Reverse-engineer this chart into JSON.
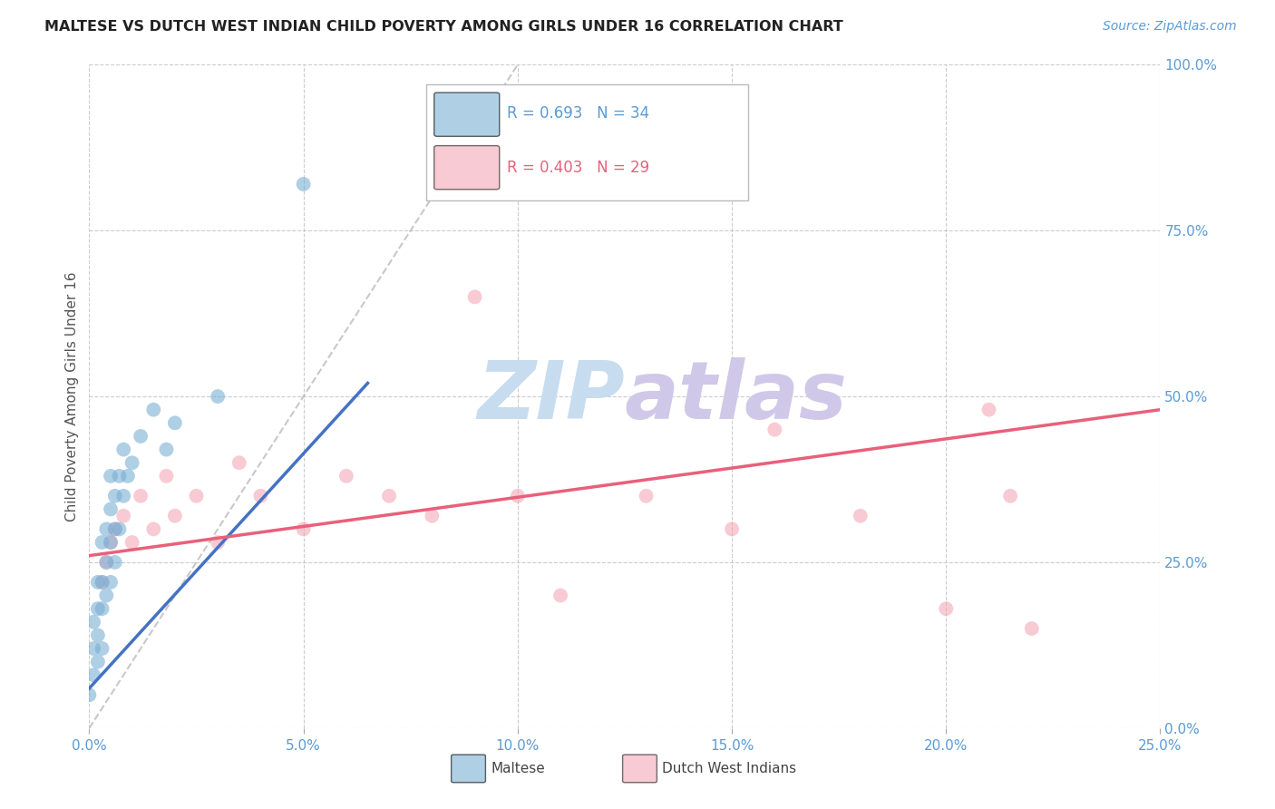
{
  "title": "MALTESE VS DUTCH WEST INDIAN CHILD POVERTY AMONG GIRLS UNDER 16 CORRELATION CHART",
  "source": "Source: ZipAtlas.com",
  "ylabel": "Child Poverty Among Girls Under 16",
  "maltese_R": 0.693,
  "maltese_N": 34,
  "dwi_R": 0.403,
  "dwi_N": 29,
  "xlim": [
    0.0,
    0.25
  ],
  "ylim": [
    0.0,
    1.0
  ],
  "xticks": [
    0.0,
    0.05,
    0.1,
    0.15,
    0.2,
    0.25
  ],
  "xtick_labels": [
    "0.0%",
    "5.0%",
    "10.0%",
    "15.0%",
    "20.0%",
    "25.0%"
  ],
  "ytick_vals": [
    0.0,
    0.25,
    0.5,
    0.75,
    1.0
  ],
  "ytick_labels": [
    "0.0%",
    "25.0%",
    "50.0%",
    "75.0%",
    "100.0%"
  ],
  "blue_color": "#7BAFD4",
  "pink_color": "#F4A0B0",
  "blue_line_color": "#4472C4",
  "pink_line_color": "#E8607A",
  "axis_label_color": "#5B9BD5",
  "grid_color": "#C0C0C0",
  "background_color": "#FFFFFF",
  "watermark_zip_color": "#C8DCF0",
  "watermark_atlas_color": "#D0C8E8",
  "maltese_x": [
    0.0,
    0.001,
    0.001,
    0.001,
    0.002,
    0.002,
    0.002,
    0.002,
    0.003,
    0.003,
    0.003,
    0.003,
    0.004,
    0.004,
    0.004,
    0.005,
    0.005,
    0.005,
    0.005,
    0.006,
    0.006,
    0.006,
    0.007,
    0.007,
    0.008,
    0.008,
    0.009,
    0.01,
    0.012,
    0.015,
    0.018,
    0.02,
    0.03,
    0.05
  ],
  "maltese_y": [
    0.05,
    0.08,
    0.12,
    0.16,
    0.1,
    0.14,
    0.18,
    0.22,
    0.12,
    0.18,
    0.22,
    0.28,
    0.2,
    0.25,
    0.3,
    0.22,
    0.28,
    0.33,
    0.38,
    0.25,
    0.3,
    0.35,
    0.3,
    0.38,
    0.35,
    0.42,
    0.38,
    0.4,
    0.44,
    0.48,
    0.42,
    0.46,
    0.5,
    0.82
  ],
  "dwi_x": [
    0.003,
    0.004,
    0.005,
    0.006,
    0.008,
    0.01,
    0.012,
    0.015,
    0.018,
    0.02,
    0.025,
    0.03,
    0.035,
    0.04,
    0.05,
    0.06,
    0.07,
    0.08,
    0.09,
    0.1,
    0.11,
    0.13,
    0.15,
    0.16,
    0.18,
    0.2,
    0.21,
    0.215,
    0.22
  ],
  "dwi_y": [
    0.22,
    0.25,
    0.28,
    0.3,
    0.32,
    0.28,
    0.35,
    0.3,
    0.38,
    0.32,
    0.35,
    0.28,
    0.4,
    0.35,
    0.3,
    0.38,
    0.35,
    0.32,
    0.65,
    0.35,
    0.2,
    0.35,
    0.3,
    0.45,
    0.32,
    0.18,
    0.48,
    0.35,
    0.15
  ],
  "blue_line_x": [
    0.0,
    0.07
  ],
  "blue_line_y_intercept": 0.07,
  "blue_line_slope": 6.0,
  "pink_line_x0": 0.0,
  "pink_line_y0": 0.26,
  "pink_line_x1": 0.25,
  "pink_line_y1": 0.48
}
